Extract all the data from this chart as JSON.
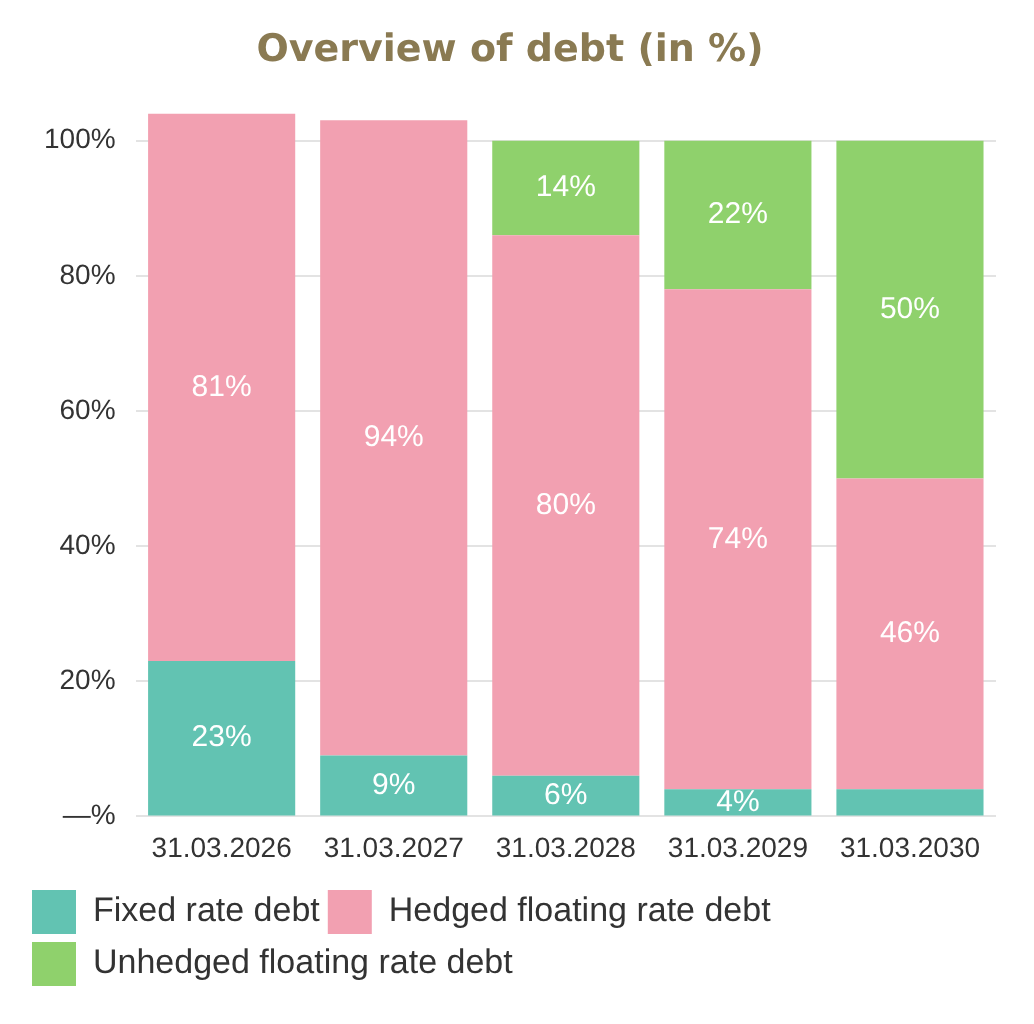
{
  "chart_data": {
    "type": "bar",
    "title": "Overview of debt (in %)",
    "stacked": true,
    "categories": [
      "31.03.2026",
      "31.03.2027",
      "31.03.2028",
      "31.03.2029",
      "31.03.2030"
    ],
    "series": [
      {
        "name": "Fixed rate debt",
        "color": "#62c3b2",
        "values": [
          23,
          9,
          6,
          4,
          4
        ],
        "value_labels": [
          "23%",
          "9%",
          "6%",
          "4%",
          null
        ]
      },
      {
        "name": "Hedged floating rate debt",
        "color": "#f2a0b1",
        "values": [
          81,
          94,
          80,
          74,
          46
        ],
        "value_labels": [
          "81%",
          "94%",
          "80%",
          "74%",
          "46%"
        ]
      },
      {
        "name": "Unhedged floating rate debt",
        "color": "#8fd16c",
        "values": [
          null,
          null,
          14,
          22,
          50
        ],
        "value_labels": [
          null,
          null,
          "14%",
          "22%",
          "50%"
        ]
      }
    ],
    "ylim": [
      0,
      104
    ],
    "yticks": [
      {
        "value": 0,
        "label": "—%"
      },
      {
        "value": 20,
        "label": "20%"
      },
      {
        "value": 40,
        "label": "40%"
      },
      {
        "value": 60,
        "label": "60%"
      },
      {
        "value": 80,
        "label": "80%"
      },
      {
        "value": 100,
        "label": "100%"
      }
    ],
    "grid": "y",
    "legend": "bottom"
  }
}
